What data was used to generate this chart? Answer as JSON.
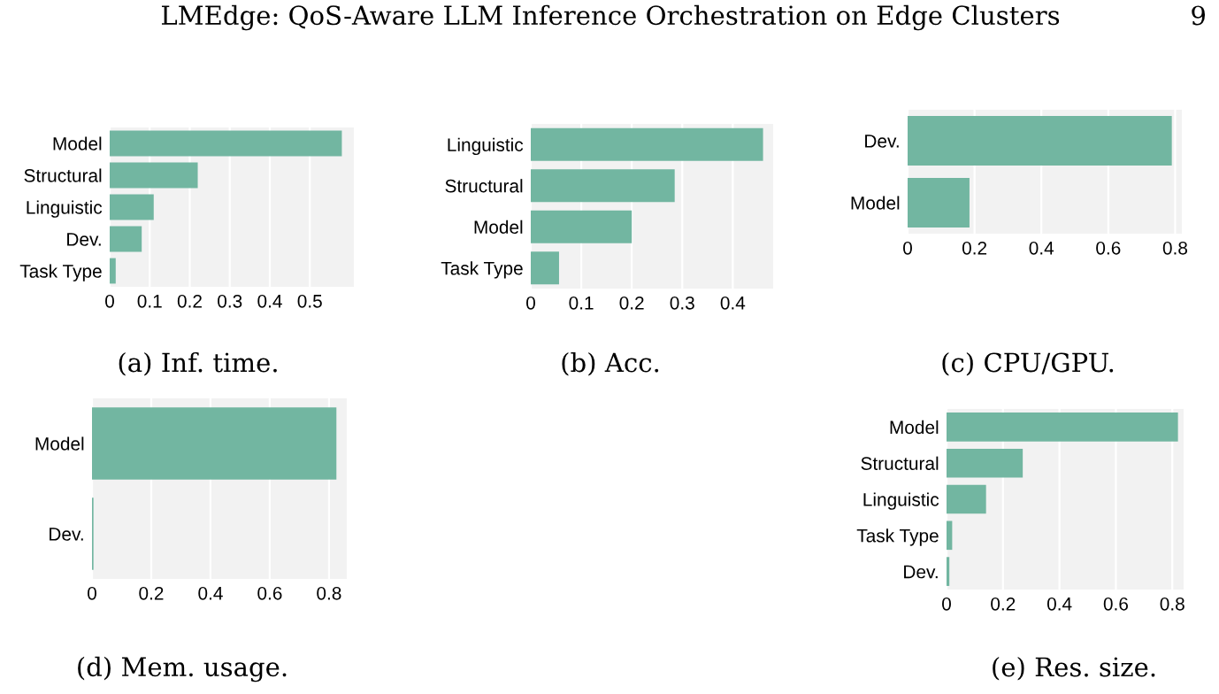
{
  "chart_data": [
    {
      "type": "bar",
      "orientation": "horizontal",
      "categories": [
        "Model",
        "Structural",
        "Linguistic",
        "Dev.",
        "Task Type"
      ],
      "values": [
        0.58,
        0.22,
        0.11,
        0.08,
        0.015
      ],
      "color": "#72b6a1",
      "xlim": [
        0,
        0.61
      ],
      "xticks": [
        0,
        0.1,
        0.2,
        0.3,
        0.4,
        0.5
      ],
      "grid": "x",
      "legend": false,
      "annotations": [
        "LMEdge: QoS-Aware LLM Inference Orchestration on Edge Clusters",
        "9",
        "(a) Inf. time."
      ]
    },
    {
      "type": "bar",
      "orientation": "horizontal",
      "categories": [
        "Linguistic",
        "Structural",
        "Model",
        "Task Type"
      ],
      "values": [
        0.46,
        0.285,
        0.2,
        0.056
      ],
      "color": "#72b6a1",
      "xlim": [
        0,
        0.48
      ],
      "xticks": [
        0,
        0.1,
        0.2,
        0.3,
        0.4
      ],
      "grid": "x",
      "legend": false,
      "annotations": [
        "(b) Acc."
      ]
    },
    {
      "type": "bar",
      "orientation": "horizontal",
      "categories": [
        "Dev.",
        "Model"
      ],
      "values": [
        0.79,
        0.185
      ],
      "color": "#72b6a1",
      "xlim": [
        0,
        0.82
      ],
      "xticks": [
        0,
        0.2,
        0.4,
        0.6,
        0.8
      ],
      "grid": "x",
      "legend": false,
      "annotations": [
        "(c) CPU/GPU."
      ]
    },
    {
      "type": "bar",
      "orientation": "horizontal",
      "categories": [
        "Model",
        "Dev."
      ],
      "values": [
        0.825,
        0.005
      ],
      "color": "#72b6a1",
      "xlim": [
        0,
        0.86
      ],
      "xticks": [
        0,
        0.2,
        0.4,
        0.6,
        0.8
      ],
      "grid": "x",
      "legend": false,
      "annotations": [
        "(d) Mem. usage."
      ]
    },
    {
      "type": "bar",
      "orientation": "horizontal",
      "categories": [
        "Model",
        "Structural",
        "Linguistic",
        "Task Type",
        "Dev."
      ],
      "values": [
        0.82,
        0.27,
        0.14,
        0.02,
        0.01
      ],
      "color": "#72b6a1",
      "xlim": [
        0,
        0.84
      ],
      "xticks": [
        0,
        0.2,
        0.4,
        0.6,
        0.8
      ],
      "grid": "x",
      "legend": false,
      "annotations": [
        "(e) Res. size."
      ]
    }
  ]
}
